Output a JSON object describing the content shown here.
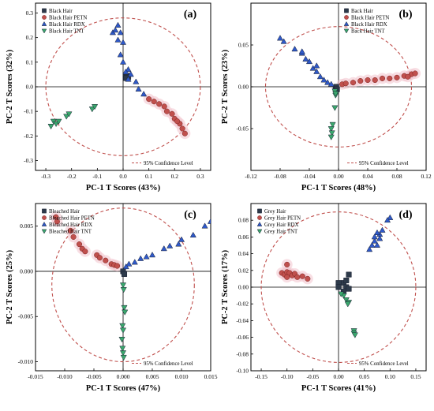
{
  "figure": {},
  "chart_data": [
    {
      "type": "scatter",
      "panel_label": "(a)",
      "xlabel": "PC-1 T Scores (43%)",
      "ylabel": "PC-2 T Scores (32%)",
      "xlim": [
        -0.34,
        0.34
      ],
      "ylim": [
        -0.34,
        0.34
      ],
      "x_ticks": [
        -0.3,
        -0.2,
        -0.1,
        0.0,
        0.1,
        0.2,
        0.3
      ],
      "x_tick_labels": [
        "-0.3",
        "-0.2",
        "-0.1",
        "0.0",
        "0.1",
        "0.2",
        "0.3"
      ],
      "y_ticks": [
        -0.3,
        -0.2,
        -0.1,
        0.0,
        0.1,
        0.2,
        0.3
      ],
      "y_tick_labels": [
        "-0.3",
        "-0.2",
        "-0.1",
        "0.0",
        "0.1",
        "0.2",
        "0.3"
      ],
      "ellipse": {
        "cx": 0.0,
        "cy": 0.0,
        "rx": 0.3,
        "ry": 0.28
      },
      "legend_position": "top-left",
      "confidence_label": "95% Confidence Level",
      "confidence_position": "bottom-right",
      "series": [
        {
          "name": "Black Hair",
          "marker": "square",
          "color": "#2d3a4a",
          "points": [
            [
              0.01,
              0.04
            ],
            [
              0.015,
              0.045
            ],
            [
              0.02,
              0.04
            ],
            [
              0.012,
              0.035
            ]
          ]
        },
        {
          "name": "Black Hair PETN",
          "marker": "circle",
          "color": "#c0504d",
          "points": [
            [
              0.1,
              -0.05
            ],
            [
              0.12,
              -0.06
            ],
            [
              0.14,
              -0.07
            ],
            [
              0.16,
              -0.08
            ],
            [
              0.17,
              -0.1
            ],
            [
              0.19,
              -0.11
            ],
            [
              0.2,
              -0.13
            ],
            [
              0.22,
              -0.15
            ],
            [
              0.23,
              -0.17
            ],
            [
              0.24,
              -0.19
            ],
            [
              0.21,
              -0.14
            ]
          ]
        },
        {
          "name": "Black Hair RDX",
          "marker": "triangle-up",
          "color": "#2f59c9",
          "points": [
            [
              -0.02,
              0.25
            ],
            [
              -0.01,
              0.22
            ],
            [
              0.0,
              0.18
            ],
            [
              -0.01,
              0.13
            ],
            [
              0.0,
              0.1
            ],
            [
              0.02,
              0.07
            ],
            [
              0.03,
              0.05
            ],
            [
              -0.04,
              0.22
            ],
            [
              -0.03,
              0.23
            ],
            [
              -0.02,
              0.19
            ],
            [
              0.05,
              0.02
            ],
            [
              0.06,
              -0.01
            ],
            [
              0.08,
              -0.03
            ],
            [
              0.01,
              0.06
            ],
            [
              0.02,
              0.03
            ]
          ]
        },
        {
          "name": "Black Hair TNT",
          "marker": "triangle-down",
          "color": "#3aa76d",
          "points": [
            [
              -0.27,
              -0.14
            ],
            [
              -0.26,
              -0.15
            ],
            [
              -0.28,
              -0.16
            ],
            [
              -0.25,
              -0.14
            ],
            [
              -0.22,
              -0.12
            ],
            [
              -0.21,
              -0.11
            ],
            [
              -0.12,
              -0.09
            ],
            [
              -0.11,
              -0.08
            ]
          ]
        }
      ]
    },
    {
      "type": "scatter",
      "panel_label": "(b)",
      "xlabel": "PC-1 T Scores (48%)",
      "ylabel": "PC-2 T Scores (23%)",
      "xlim": [
        -0.12,
        0.12
      ],
      "ylim": [
        -0.1,
        0.1
      ],
      "x_ticks": [
        -0.12,
        -0.08,
        -0.04,
        0.0,
        0.04,
        0.08,
        0.12
      ],
      "x_tick_labels": [
        "-0.12",
        "-0.08",
        "-0.04",
        "0.00",
        "0.04",
        "0.08",
        "0.12"
      ],
      "y_ticks": [
        -0.05,
        0.0,
        0.05
      ],
      "y_tick_labels": [
        "-0.05",
        "0.00",
        "0.05"
      ],
      "ellipse": {
        "cx": 0.0,
        "cy": 0.0,
        "rx": 0.1,
        "ry": 0.072
      },
      "legend_position": "top-right",
      "confidence_label": "95% Confidence Level",
      "confidence_position": "bottom-right",
      "series": [
        {
          "name": "Back Hair",
          "marker": "square",
          "color": "#2d3a4a",
          "points": [
            [
              -0.004,
              -0.002
            ],
            [
              -0.003,
              0.0
            ],
            [
              -0.002,
              -0.003
            ]
          ]
        },
        {
          "name": "Black Hair PETN",
          "marker": "circle",
          "color": "#c0504d",
          "points": [
            [
              0.005,
              0.003
            ],
            [
              0.01,
              0.004
            ],
            [
              0.02,
              0.005
            ],
            [
              0.03,
              0.007
            ],
            [
              0.04,
              0.008
            ],
            [
              0.05,
              0.008
            ],
            [
              0.06,
              0.01
            ],
            [
              0.07,
              0.01
            ],
            [
              0.08,
              0.011
            ],
            [
              0.09,
              0.013
            ],
            [
              0.1,
              0.015
            ],
            [
              0.105,
              0.016
            ],
            [
              0.095,
              0.012
            ]
          ]
        },
        {
          "name": "Black Hair RDX",
          "marker": "triangle-up",
          "color": "#2f59c9",
          "points": [
            [
              -0.08,
              0.058
            ],
            [
              -0.075,
              0.054
            ],
            [
              -0.06,
              0.045
            ],
            [
              -0.05,
              0.04
            ],
            [
              -0.045,
              0.033
            ],
            [
              -0.04,
              0.03
            ],
            [
              -0.035,
              0.022
            ],
            [
              -0.03,
              0.018
            ],
            [
              -0.025,
              0.012
            ],
            [
              -0.02,
              0.008
            ],
            [
              -0.015,
              0.005
            ],
            [
              -0.01,
              0.003
            ],
            [
              -0.05,
              0.042
            ],
            [
              -0.03,
              0.025
            ]
          ]
        },
        {
          "name": "Back Hair TNT",
          "marker": "triangle-down",
          "color": "#3aa76d",
          "points": [
            [
              -0.005,
              -0.005
            ],
            [
              -0.004,
              -0.01
            ],
            [
              -0.005,
              -0.025
            ],
            [
              -0.008,
              -0.045
            ],
            [
              -0.01,
              -0.05
            ],
            [
              -0.009,
              -0.055
            ],
            [
              -0.01,
              -0.06
            ],
            [
              -0.004,
              -0.008
            ]
          ]
        }
      ]
    },
    {
      "type": "scatter",
      "panel_label": "(c)",
      "xlabel": "PC-1 T Scores (47%)",
      "ylabel": "PC-2 T Scores (25%)",
      "xlim": [
        -0.015,
        0.015
      ],
      "ylim": [
        -0.011,
        0.0075
      ],
      "x_ticks": [
        -0.015,
        -0.01,
        -0.005,
        0.0,
        0.005,
        0.01,
        0.015
      ],
      "x_tick_labels": [
        "-0.015",
        "-0.010",
        "-0.005",
        "0.000",
        "0.005",
        "0.010",
        "0.015"
      ],
      "y_ticks": [
        -0.01,
        -0.005,
        0.0,
        0.005
      ],
      "y_tick_labels": [
        "-0.010",
        "-0.005",
        "0.000",
        "0.005"
      ],
      "ellipse": {
        "cx": 0.0,
        "cy": -0.0015,
        "rx": 0.0122,
        "ry": 0.0085
      },
      "legend_position": "top-left",
      "confidence_label": "95% Confidence Level",
      "confidence_position": "bottom-right",
      "series": [
        {
          "name": "Bleached Hair",
          "marker": "square",
          "color": "#2d3a4a",
          "points": [
            [
              0.0,
              0.0
            ],
            [
              0.0002,
              -0.0003
            ]
          ]
        },
        {
          "name": "Bleached Hair PETN",
          "marker": "circle",
          "color": "#c0504d",
          "points": [
            [
              -0.0115,
              0.006
            ],
            [
              -0.0113,
              0.0055
            ],
            [
              -0.009,
              0.0045
            ],
            [
              -0.0085,
              0.0038
            ],
            [
              -0.0075,
              0.003
            ],
            [
              -0.007,
              0.0025
            ],
            [
              -0.0065,
              0.0022
            ],
            [
              -0.0045,
              0.0018
            ],
            [
              -0.004,
              0.0015
            ],
            [
              -0.003,
              0.0012
            ],
            [
              -0.002,
              0.0008
            ],
            [
              -0.0015,
              0.0007
            ],
            [
              -0.001,
              0.0006
            ]
          ]
        },
        {
          "name": "Bleached Hair RDX",
          "marker": "triangle-up",
          "color": "#2f59c9",
          "points": [
            [
              0.015,
              0.0055
            ],
            [
              0.014,
              0.005
            ],
            [
              0.012,
              0.004
            ],
            [
              0.01,
              0.0035
            ],
            [
              0.0095,
              0.003
            ],
            [
              0.008,
              0.0028
            ],
            [
              0.007,
              0.0025
            ],
            [
              0.005,
              0.0018
            ],
            [
              0.004,
              0.0016
            ],
            [
              0.003,
              0.0014
            ],
            [
              0.002,
              0.001
            ],
            [
              0.001,
              0.0008
            ],
            [
              0.0005,
              0.0005
            ]
          ]
        },
        {
          "name": "Bleached Hair TNT",
          "marker": "triangle-down",
          "color": "#3aa76d",
          "points": [
            [
              0.0,
              -0.0015
            ],
            [
              0.0001,
              -0.002
            ],
            [
              0.0002,
              -0.004
            ],
            [
              0.0003,
              -0.0045
            ],
            [
              -0.0001,
              -0.006
            ],
            [
              0.0,
              -0.0065
            ],
            [
              -0.0002,
              -0.0075
            ],
            [
              0.0,
              -0.009
            ],
            [
              0.0001,
              -0.0095
            ],
            [
              -0.0001,
              -0.0085
            ]
          ]
        }
      ]
    },
    {
      "type": "scatter",
      "panel_label": "(d)",
      "xlabel": "PC-1 T Scores (41%)",
      "ylabel": "PC-2 T Scores (17%)",
      "xlim": [
        -0.17,
        0.17
      ],
      "ylim": [
        -0.1,
        0.1
      ],
      "x_ticks": [
        -0.15,
        -0.1,
        -0.05,
        0.0,
        0.05,
        0.1,
        0.15
      ],
      "x_tick_labels": [
        "-0.15",
        "-0.10",
        "-0.05",
        "0.00",
        "0.05",
        "0.10",
        "0.15"
      ],
      "y_ticks": [
        -0.1,
        -0.08,
        -0.06,
        -0.04,
        -0.02,
        0.0,
        0.02,
        0.04,
        0.06,
        0.08
      ],
      "y_tick_labels": [
        "-0.10",
        "-0.08",
        "-0.06",
        "-0.04",
        "-0.02",
        "0.00",
        "0.02",
        "0.04",
        "0.06",
        "0.08"
      ],
      "ellipse": {
        "cx": 0.0,
        "cy": 0.0,
        "rx": 0.15,
        "ry": 0.09
      },
      "legend_position": "top-left",
      "confidence_label": "95% Confidence Level",
      "confidence_position": "bottom-right",
      "series": [
        {
          "name": "Grey Hair",
          "marker": "square",
          "color": "#2d3a4a",
          "points": [
            [
              0.0,
              0.005
            ],
            [
              0.01,
              0.005
            ],
            [
              0.02,
              0.015
            ],
            [
              0.015,
              0.0
            ],
            [
              0.01,
              -0.005
            ],
            [
              0.02,
              -0.002
            ],
            [
              0.015,
              0.008
            ],
            [
              0.0,
              0.0
            ]
          ]
        },
        {
          "name": "Grey Hair PETN",
          "marker": "circle",
          "color": "#c0504d",
          "points": [
            [
              -0.11,
              0.017
            ],
            [
              -0.105,
              0.015
            ],
            [
              -0.1,
              0.018
            ],
            [
              -0.095,
              0.017
            ],
            [
              -0.09,
              0.014
            ],
            [
              -0.085,
              0.016
            ],
            [
              -0.08,
              0.012
            ],
            [
              -0.07,
              0.013
            ],
            [
              -0.1,
              0.012
            ],
            [
              -0.1,
              0.027
            ],
            [
              -0.06,
              0.01
            ]
          ]
        },
        {
          "name": "Grey Hair RDX",
          "marker": "triangle-up",
          "color": "#2f59c9",
          "points": [
            [
              0.1,
              0.083
            ],
            [
              0.095,
              0.08
            ],
            [
              0.085,
              0.068
            ],
            [
              0.08,
              0.063
            ],
            [
              0.075,
              0.065
            ],
            [
              0.07,
              0.055
            ],
            [
              0.065,
              0.05
            ],
            [
              0.06,
              0.045
            ],
            [
              0.07,
              0.06
            ],
            [
              0.08,
              0.058
            ],
            [
              0.075,
              0.05
            ]
          ]
        },
        {
          "name": "Grey Hair TNT",
          "marker": "triangle-down",
          "color": "#3aa76d",
          "points": [
            [
              0.01,
              -0.01
            ],
            [
              0.015,
              -0.015
            ],
            [
              0.02,
              -0.018
            ],
            [
              0.03,
              -0.052
            ],
            [
              0.03,
              -0.055
            ],
            [
              0.032,
              -0.057
            ],
            [
              0.005,
              -0.008
            ],
            [
              0.018,
              -0.02
            ]
          ]
        }
      ]
    }
  ]
}
